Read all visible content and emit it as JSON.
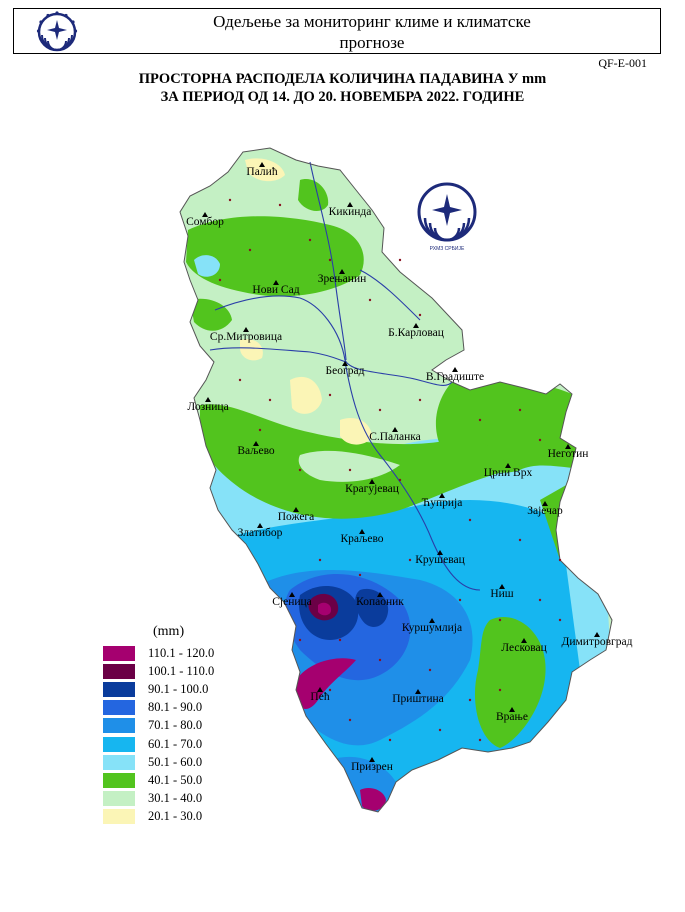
{
  "header": {
    "line1": "Одељење за мониторинг климе и климатске",
    "line2": "прогнозе",
    "doc_code": "QF-E-001"
  },
  "title": {
    "line1": "ПРОСТОРНА РАСПОДЕЛА КОЛИЧИНА ПАДАВИНА У mm",
    "line2": "ЗА ПЕРИОД ОД 14. ДО 20. НОВЕМБРА 2022. ГОДИНЕ"
  },
  "logo": {
    "caption": "РХМЗ СРБИЈЕ",
    "icon": "rhmz-logo-icon"
  },
  "legend": {
    "title": "(mm)",
    "classes": [
      {
        "label": "110.1 - 120.0",
        "color": "#a5006f"
      },
      {
        "label": "100.1 - 110.0",
        "color": "#6b0046"
      },
      {
        "label": "90.1 - 100.0",
        "color": "#0a3c9c"
      },
      {
        "label": "80.1 -  90.0",
        "color": "#2466e0"
      },
      {
        "label": "70.1 -  80.0",
        "color": "#1f8fe8"
      },
      {
        "label": "60.1 -  70.0",
        "color": "#16b6f0"
      },
      {
        "label": "50.1 -  60.0",
        "color": "#86e2f8"
      },
      {
        "label": "40.1 -  50.0",
        "color": "#52c41e"
      },
      {
        "label": "30.1 -  40.0",
        "color": "#c4f0c4"
      },
      {
        "label": "20.1 -  30.0",
        "color": "#fbf5b6"
      }
    ]
  },
  "cities": [
    {
      "id": "palic",
      "name": "Палић"
    },
    {
      "id": "kikinda",
      "name": "Кикинда"
    },
    {
      "id": "sombor",
      "name": "Сомбор"
    },
    {
      "id": "zrenjanin",
      "name": "Зрењанин"
    },
    {
      "id": "novi-sad",
      "name": "Нови Сад"
    },
    {
      "id": "b-karlovac",
      "name": "Б.Карловац"
    },
    {
      "id": "sr-mitrovica",
      "name": "Ср.Митровица"
    },
    {
      "id": "beograd",
      "name": "Београд"
    },
    {
      "id": "v-gradiste",
      "name": "В.Градиште"
    },
    {
      "id": "loznica",
      "name": "Лозница"
    },
    {
      "id": "s-palanka",
      "name": "С.Паланка"
    },
    {
      "id": "valjevo",
      "name": "Ваљево"
    },
    {
      "id": "negotin",
      "name": "Неготин"
    },
    {
      "id": "crni-vrh",
      "name": "Црни Врх"
    },
    {
      "id": "kragujevac",
      "name": "Крагујевац"
    },
    {
      "id": "cuprija",
      "name": "Ћуприја"
    },
    {
      "id": "zajecar",
      "name": "Зајечар"
    },
    {
      "id": "pozega",
      "name": "Пожега"
    },
    {
      "id": "zlatibor",
      "name": "Златибор"
    },
    {
      "id": "kraljevo",
      "name": "Краљево"
    },
    {
      "id": "krusevac",
      "name": "Крушевац"
    },
    {
      "id": "nis",
      "name": "Ниш"
    },
    {
      "id": "sjenica",
      "name": "Сјеница"
    },
    {
      "id": "kopaonik",
      "name": "Копаоник"
    },
    {
      "id": "kursumlija",
      "name": "Куршумлија"
    },
    {
      "id": "leskovac",
      "name": "Лесковац"
    },
    {
      "id": "dimitrovgrad",
      "name": "Димитровград"
    },
    {
      "id": "pec",
      "name": "Пећ"
    },
    {
      "id": "pristina",
      "name": "Приштина"
    },
    {
      "id": "vranje",
      "name": "Врање"
    },
    {
      "id": "prizren",
      "name": "Призрен"
    }
  ]
}
